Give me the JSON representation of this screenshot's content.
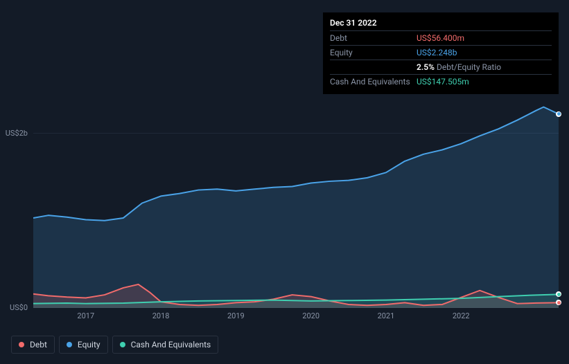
{
  "tooltip": {
    "date": "Dec 31 2022",
    "rows": [
      {
        "label": "Debt",
        "value": "US$56.400m",
        "color": "#f16b6b"
      },
      {
        "label": "Equity",
        "value": "US$2.248b",
        "color": "#4aa3e8"
      },
      {
        "label": "",
        "pct": "2.5%",
        "ratio_label": "Debt/Equity Ratio"
      },
      {
        "label": "Cash And Equivalents",
        "value": "US$147.505m",
        "color": "#3fcfb0"
      }
    ]
  },
  "chart": {
    "type": "area",
    "background_color": "#131b27",
    "grid_color": "#1f2838",
    "text_color": "#8a94a6",
    "ylim": [
      0,
      2400
    ],
    "y_ticks": [
      {
        "v": 0,
        "label": "US$0"
      },
      {
        "v": 2000,
        "label": "US$2b"
      }
    ],
    "x_range": [
      2016.3,
      2023.3
    ],
    "x_ticks": [
      2017,
      2018,
      2019,
      2020,
      2021,
      2022
    ],
    "series": [
      {
        "name": "Equity",
        "color": "#4aa3e8",
        "fill_opacity": 0.18,
        "data": [
          [
            2016.3,
            1030
          ],
          [
            2016.5,
            1060
          ],
          [
            2016.75,
            1040
          ],
          [
            2017.0,
            1010
          ],
          [
            2017.25,
            1000
          ],
          [
            2017.5,
            1030
          ],
          [
            2017.75,
            1200
          ],
          [
            2018.0,
            1280
          ],
          [
            2018.25,
            1310
          ],
          [
            2018.5,
            1350
          ],
          [
            2018.75,
            1360
          ],
          [
            2019.0,
            1340
          ],
          [
            2019.25,
            1360
          ],
          [
            2019.5,
            1380
          ],
          [
            2019.75,
            1390
          ],
          [
            2020.0,
            1430
          ],
          [
            2020.25,
            1450
          ],
          [
            2020.5,
            1460
          ],
          [
            2020.75,
            1490
          ],
          [
            2021.0,
            1550
          ],
          [
            2021.25,
            1680
          ],
          [
            2021.5,
            1760
          ],
          [
            2021.75,
            1810
          ],
          [
            2022.0,
            1880
          ],
          [
            2022.25,
            1970
          ],
          [
            2022.5,
            2050
          ],
          [
            2022.75,
            2150
          ],
          [
            2023.0,
            2260
          ],
          [
            2023.1,
            2300
          ],
          [
            2023.3,
            2220
          ]
        ]
      },
      {
        "name": "Debt",
        "color": "#f16b6b",
        "fill_opacity": 0.18,
        "data": [
          [
            2016.3,
            160
          ],
          [
            2016.5,
            140
          ],
          [
            2016.75,
            125
          ],
          [
            2017.0,
            115
          ],
          [
            2017.25,
            150
          ],
          [
            2017.5,
            230
          ],
          [
            2017.7,
            270
          ],
          [
            2017.85,
            180
          ],
          [
            2018.0,
            70
          ],
          [
            2018.25,
            40
          ],
          [
            2018.5,
            30
          ],
          [
            2018.75,
            40
          ],
          [
            2019.0,
            60
          ],
          [
            2019.25,
            70
          ],
          [
            2019.5,
            100
          ],
          [
            2019.75,
            150
          ],
          [
            2020.0,
            130
          ],
          [
            2020.25,
            80
          ],
          [
            2020.5,
            40
          ],
          [
            2020.75,
            30
          ],
          [
            2021.0,
            40
          ],
          [
            2021.25,
            60
          ],
          [
            2021.5,
            30
          ],
          [
            2021.75,
            40
          ],
          [
            2022.0,
            120
          ],
          [
            2022.25,
            200
          ],
          [
            2022.5,
            120
          ],
          [
            2022.75,
            50
          ],
          [
            2023.0,
            56
          ],
          [
            2023.3,
            60
          ]
        ]
      },
      {
        "name": "Cash And Equivalents",
        "color": "#3fcfb0",
        "fill_opacity": 0.15,
        "data": [
          [
            2016.3,
            50
          ],
          [
            2016.75,
            55
          ],
          [
            2017.0,
            50
          ],
          [
            2017.5,
            55
          ],
          [
            2018.0,
            70
          ],
          [
            2018.5,
            80
          ],
          [
            2019.0,
            85
          ],
          [
            2019.5,
            90
          ],
          [
            2020.0,
            80
          ],
          [
            2020.5,
            85
          ],
          [
            2021.0,
            90
          ],
          [
            2021.5,
            100
          ],
          [
            2022.0,
            110
          ],
          [
            2022.5,
            130
          ],
          [
            2023.0,
            148
          ],
          [
            2023.3,
            155
          ]
        ]
      }
    ],
    "legend": [
      {
        "label": "Debt",
        "color": "#f16b6b"
      },
      {
        "label": "Equity",
        "color": "#4aa3e8"
      },
      {
        "label": "Cash And Equivalents",
        "color": "#3fcfb0"
      }
    ],
    "markers_x": 2023.3
  }
}
